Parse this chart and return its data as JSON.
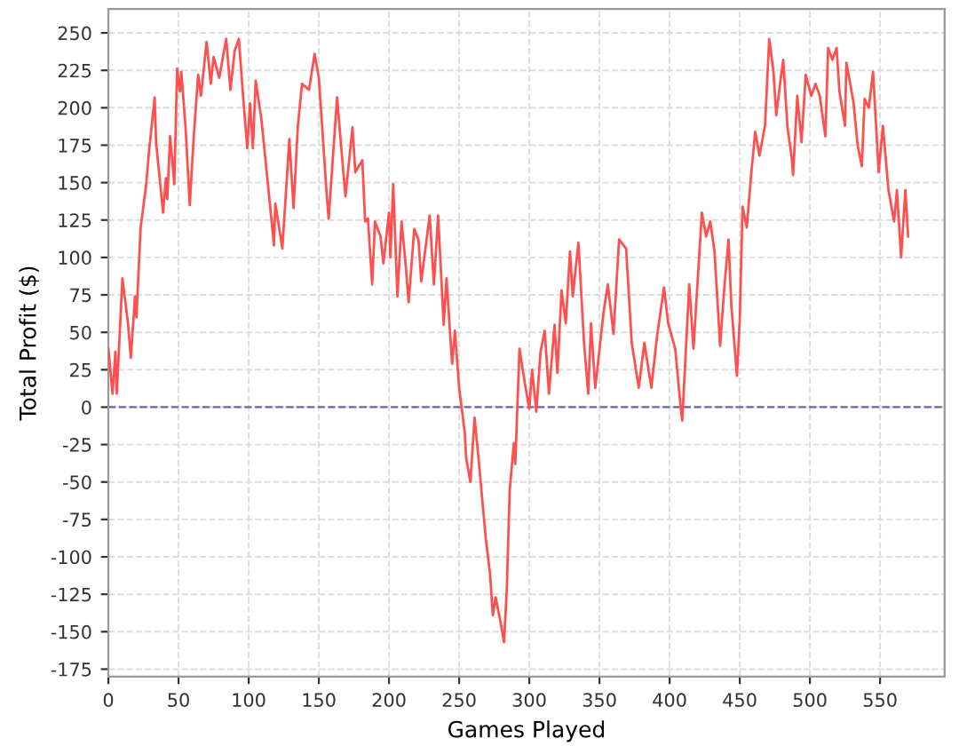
{
  "chart_data": {
    "type": "line",
    "xlabel": "Games Played",
    "ylabel": "Total Profit ($)",
    "xlim": [
      0,
      596
    ],
    "xticks": [
      0,
      50,
      100,
      150,
      200,
      250,
      300,
      350,
      400,
      450,
      500,
      550
    ],
    "ylim": [
      -180,
      266
    ],
    "yticks": [
      -175,
      -150,
      -125,
      -100,
      -75,
      -50,
      -25,
      0,
      25,
      50,
      75,
      100,
      125,
      150,
      175,
      200,
      225,
      250
    ],
    "grid": true,
    "marker": "none",
    "line_style": "solid",
    "ref_lines": [
      {
        "axis": "y",
        "value": 0,
        "color": "#6666aa",
        "line_style": "dashed"
      }
    ],
    "series": [
      {
        "color": "#ff5050",
        "x": [
          0,
          3,
          5,
          6,
          10,
          14,
          16,
          19,
          20,
          23,
          27,
          29,
          33,
          34,
          39,
          41,
          42,
          44,
          47,
          49,
          51,
          52,
          55,
          58,
          61,
          64,
          66,
          70,
          73,
          75,
          79,
          84,
          87,
          90,
          93,
          96,
          99,
          101,
          103,
          105,
          109,
          115,
          118,
          119,
          124,
          129,
          132,
          135,
          138,
          143,
          147,
          150,
          156,
          157,
          163,
          166,
          169,
          174,
          176,
          181,
          183,
          185,
          188,
          190,
          194,
          196,
          200,
          201,
          203,
          206,
          209,
          212,
          214,
          218,
          221,
          223,
          229,
          232,
          235,
          239,
          241,
          245,
          247,
          250,
          254,
          255,
          258,
          261,
          264,
          269,
          272,
          274,
          276,
          279,
          282,
          284,
          286,
          289,
          290,
          293,
          297,
          300,
          302,
          305,
          308,
          311,
          314,
          318,
          320,
          323,
          326,
          329,
          331,
          335,
          339,
          342,
          344,
          347,
          353,
          356,
          360,
          364,
          369,
          373,
          378,
          382,
          387,
          391,
          396,
          399,
          404,
          408,
          409,
          414,
          417,
          423,
          426,
          429,
          432,
          436,
          439,
          442,
          444,
          448,
          450,
          452,
          455,
          458,
          461,
          464,
          468,
          471,
          474,
          476,
          479,
          481,
          484,
          487,
          488,
          491,
          494,
          497,
          501,
          504,
          507,
          511,
          513,
          516,
          519,
          521,
          525,
          526,
          531,
          534,
          537,
          539,
          542,
          545,
          549,
          552,
          556,
          560,
          562,
          565,
          568,
          570
        ],
        "values": [
          39,
          9,
          37,
          9,
          86,
          56,
          33,
          74,
          60,
          120,
          149,
          171,
          207,
          177,
          130,
          153,
          139,
          181,
          149,
          226,
          211,
          224,
          187,
          135,
          183,
          222,
          208,
          244,
          216,
          234,
          220,
          246,
          212,
          238,
          246,
          208,
          173,
          203,
          173,
          218,
          193,
          137,
          108,
          136,
          106,
          179,
          133,
          187,
          216,
          212,
          236,
          220,
          137,
          126,
          207,
          173,
          141,
          187,
          157,
          165,
          124,
          126,
          82,
          124,
          114,
          96,
          130,
          100,
          149,
          74,
          124,
          94,
          70,
          119,
          112,
          84,
          128,
          82,
          128,
          55,
          86,
          29,
          51,
          13,
          -17,
          -34,
          -50,
          -7,
          -36,
          -88,
          -111,
          -139,
          -127,
          -141,
          -157,
          -121,
          -56,
          -24,
          -38,
          39,
          15,
          -1,
          25,
          -3,
          37,
          51,
          9,
          55,
          23,
          78,
          56,
          104,
          74,
          110,
          43,
          9,
          56,
          13,
          64,
          82,
          49,
          112,
          106,
          43,
          13,
          43,
          13,
          47,
          80,
          56,
          39,
          -1,
          -9,
          82,
          39,
          130,
          114,
          124,
          104,
          41,
          80,
          112,
          68,
          21,
          59,
          134,
          120,
          154,
          184,
          168,
          188,
          246,
          224,
          195,
          218,
          232,
          187,
          167,
          155,
          208,
          177,
          222,
          208,
          216,
          208,
          181,
          240,
          232,
          240,
          211,
          188,
          230,
          204,
          175,
          161,
          206,
          200,
          224,
          157,
          188,
          145,
          124,
          145,
          100,
          145,
          114
        ]
      }
    ]
  }
}
